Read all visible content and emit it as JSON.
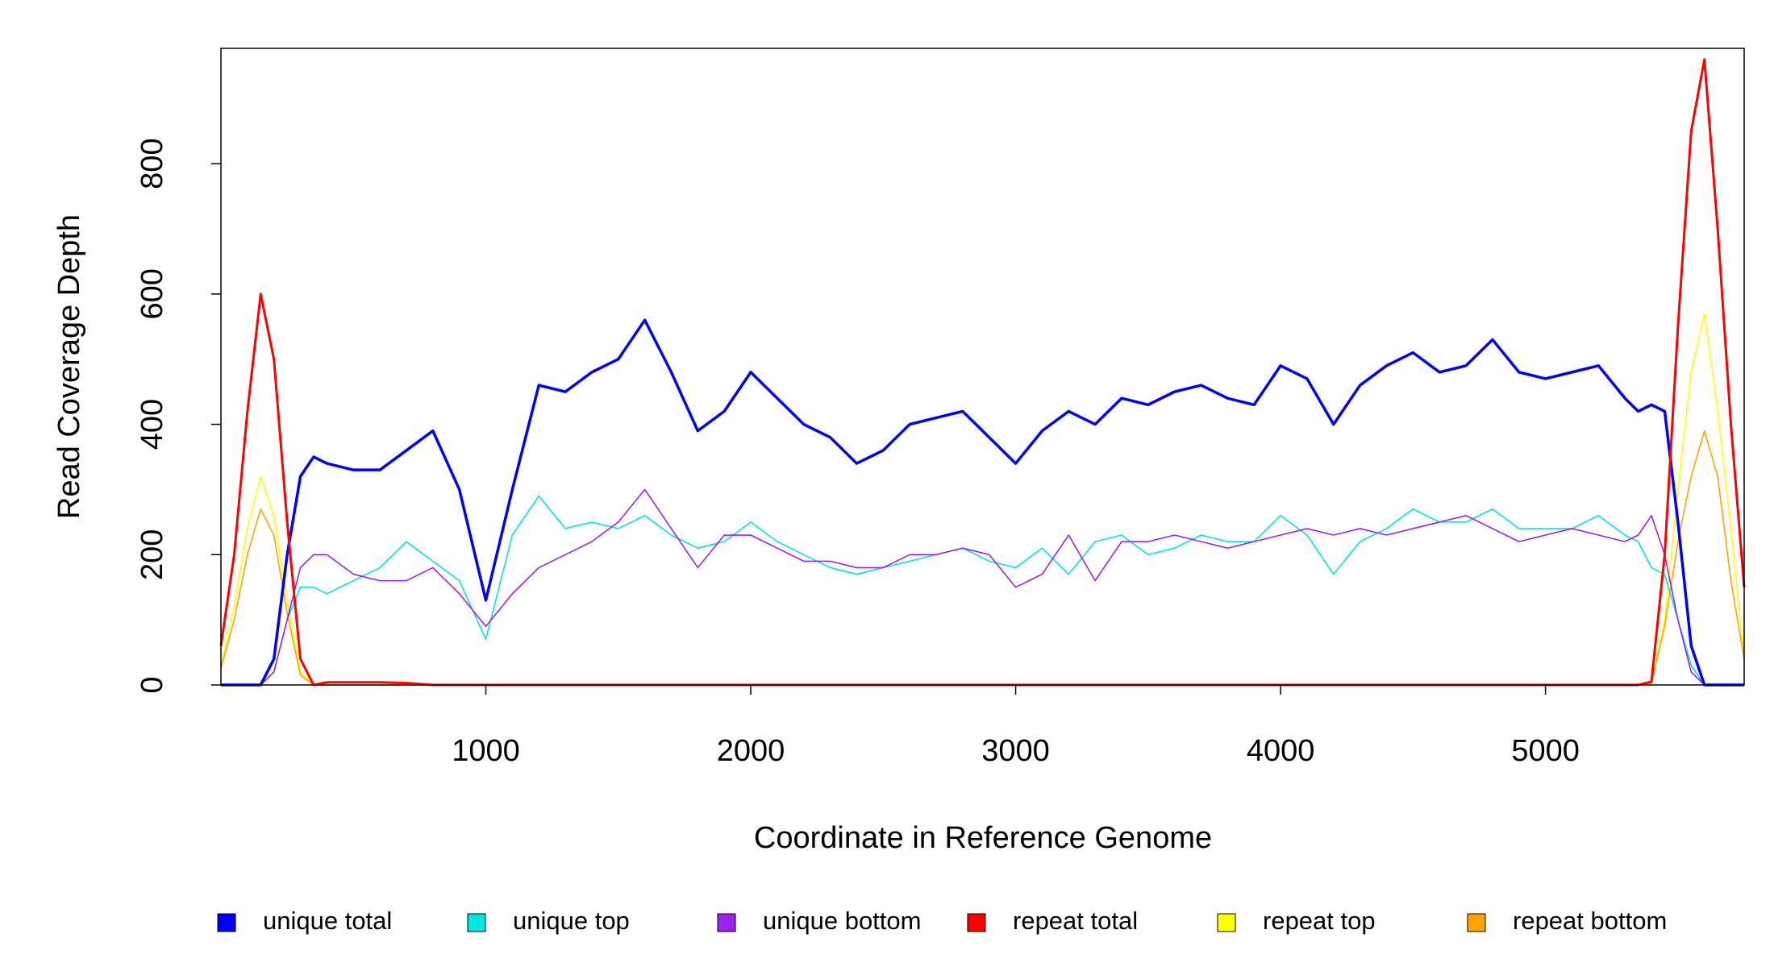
{
  "chart_data": {
    "type": "line",
    "xlabel": "Coordinate in Reference Genome",
    "ylabel": "Read Coverage Depth",
    "x": [
      0,
      50,
      100,
      150,
      200,
      250,
      300,
      350,
      400,
      500,
      600,
      700,
      800,
      900,
      1000,
      1100,
      1200,
      1300,
      1400,
      1500,
      1600,
      1700,
      1800,
      1900,
      2000,
      2100,
      2200,
      2300,
      2400,
      2500,
      2600,
      2700,
      2800,
      2900,
      3000,
      3100,
      3200,
      3300,
      3400,
      3500,
      3600,
      3700,
      3800,
      3900,
      4000,
      4100,
      4200,
      4300,
      4400,
      4500,
      4600,
      4700,
      4800,
      4900,
      5000,
      5100,
      5200,
      5300,
      5350,
      5400,
      5450,
      5500,
      5550,
      5600,
      5650,
      5700,
      5750
    ],
    "xlim": [
      0,
      5750
    ],
    "xticks": [
      1000,
      2000,
      3000,
      4000,
      5000
    ],
    "ylim": [
      0,
      977
    ],
    "yticks": [
      0,
      200,
      400,
      600,
      800
    ],
    "grid": false,
    "legend": "bottom",
    "series": [
      {
        "name": "unique total",
        "color": "#0000ff",
        "values": [
          0,
          0,
          0,
          0,
          40,
          200,
          320,
          350,
          340,
          330,
          330,
          360,
          390,
          300,
          130,
          300,
          460,
          450,
          480,
          500,
          560,
          480,
          390,
          420,
          480,
          440,
          400,
          380,
          340,
          360,
          400,
          410,
          420,
          380,
          340,
          390,
          420,
          400,
          440,
          430,
          450,
          460,
          440,
          430,
          490,
          470,
          400,
          460,
          490,
          510,
          480,
          490,
          530,
          480,
          470,
          480,
          490,
          440,
          420,
          430,
          420,
          250,
          60,
          0,
          0,
          0,
          0
        ]
      },
      {
        "name": "unique top",
        "color": "#00e5e5",
        "values": [
          0,
          0,
          0,
          0,
          20,
          100,
          150,
          150,
          140,
          160,
          180,
          220,
          190,
          160,
          70,
          230,
          290,
          240,
          250,
          240,
          260,
          230,
          210,
          220,
          250,
          220,
          200,
          180,
          170,
          180,
          190,
          200,
          210,
          190,
          180,
          210,
          170,
          220,
          230,
          200,
          210,
          230,
          220,
          220,
          260,
          230,
          170,
          220,
          240,
          270,
          250,
          250,
          270,
          240,
          240,
          240,
          260,
          230,
          220,
          180,
          170,
          100,
          30,
          0,
          0,
          0,
          0
        ]
      },
      {
        "name": "unique bottom",
        "color": "#a020f0",
        "values": [
          0,
          0,
          0,
          0,
          20,
          100,
          180,
          200,
          200,
          170,
          160,
          160,
          180,
          140,
          90,
          140,
          180,
          200,
          220,
          250,
          300,
          240,
          180,
          230,
          230,
          210,
          190,
          190,
          180,
          180,
          200,
          200,
          210,
          200,
          150,
          170,
          230,
          160,
          220,
          220,
          230,
          220,
          210,
          220,
          230,
          240,
          230,
          240,
          230,
          240,
          250,
          260,
          240,
          220,
          230,
          240,
          230,
          220,
          230,
          260,
          200,
          100,
          20,
          0,
          0,
          0,
          0
        ]
      },
      {
        "name": "repeat total",
        "color": "#ff0000",
        "values": [
          60,
          200,
          420,
          600,
          500,
          250,
          40,
          0,
          4,
          4,
          4,
          3,
          0,
          0,
          0,
          0,
          0,
          0,
          0,
          0,
          0,
          0,
          0,
          0,
          0,
          0,
          0,
          0,
          0,
          0,
          0,
          0,
          0,
          0,
          0,
          0,
          0,
          0,
          0,
          0,
          0,
          0,
          0,
          0,
          0,
          0,
          0,
          0,
          0,
          0,
          0,
          0,
          0,
          0,
          0,
          0,
          0,
          0,
          0,
          5,
          200,
          550,
          850,
          960,
          700,
          400,
          150
        ]
      },
      {
        "name": "repeat top",
        "color": "#ffff00",
        "values": [
          30,
          120,
          240,
          320,
          260,
          130,
          20,
          0,
          0,
          0,
          0,
          0,
          0,
          0,
          0,
          0,
          0,
          0,
          0,
          0,
          0,
          0,
          0,
          0,
          0,
          0,
          0,
          0,
          0,
          0,
          0,
          0,
          0,
          0,
          0,
          0,
          0,
          0,
          0,
          0,
          0,
          0,
          0,
          0,
          0,
          0,
          0,
          0,
          0,
          0,
          0,
          0,
          0,
          0,
          0,
          0,
          0,
          0,
          0,
          3,
          100,
          300,
          480,
          570,
          420,
          240,
          40
        ]
      },
      {
        "name": "repeat bottom",
        "color": "#ffa500",
        "values": [
          25,
          100,
          200,
          270,
          230,
          110,
          15,
          0,
          0,
          0,
          0,
          0,
          0,
          0,
          0,
          0,
          0,
          0,
          0,
          0,
          0,
          0,
          0,
          0,
          0,
          0,
          0,
          0,
          0,
          0,
          0,
          0,
          0,
          0,
          0,
          0,
          0,
          0,
          0,
          0,
          0,
          0,
          0,
          0,
          0,
          0,
          0,
          0,
          0,
          0,
          0,
          0,
          0,
          0,
          0,
          0,
          0,
          0,
          0,
          2,
          90,
          220,
          320,
          390,
          320,
          160,
          40
        ]
      }
    ]
  }
}
